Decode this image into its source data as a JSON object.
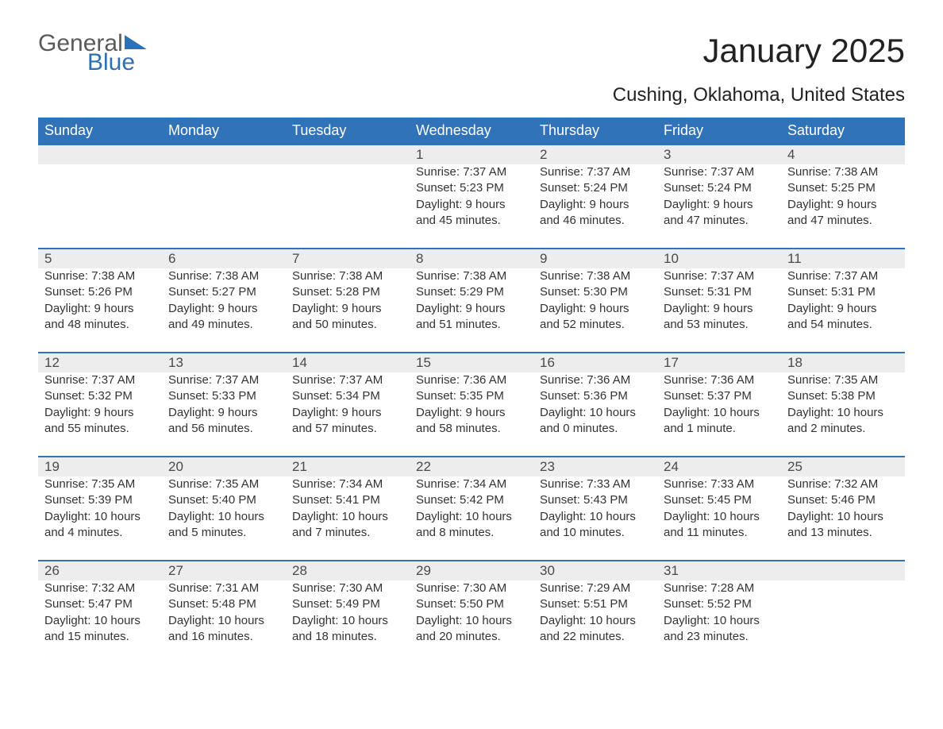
{
  "brand": {
    "general": "General",
    "blue": "Blue"
  },
  "title": "January 2025",
  "location": "Cushing, Oklahoma, United States",
  "colors": {
    "header_bg": "#3173b8",
    "header_text": "#ffffff",
    "daynum_bg": "#ededed",
    "text": "#333333",
    "brand_gray": "#5a5a5a",
    "brand_blue": "#2f6fb3"
  },
  "weekdays": [
    "Sunday",
    "Monday",
    "Tuesday",
    "Wednesday",
    "Thursday",
    "Friday",
    "Saturday"
  ],
  "weeks": [
    [
      null,
      null,
      null,
      {
        "n": "1",
        "sunrise": "Sunrise: 7:37 AM",
        "sunset": "Sunset: 5:23 PM",
        "d1": "Daylight: 9 hours",
        "d2": "and 45 minutes."
      },
      {
        "n": "2",
        "sunrise": "Sunrise: 7:37 AM",
        "sunset": "Sunset: 5:24 PM",
        "d1": "Daylight: 9 hours",
        "d2": "and 46 minutes."
      },
      {
        "n": "3",
        "sunrise": "Sunrise: 7:37 AM",
        "sunset": "Sunset: 5:24 PM",
        "d1": "Daylight: 9 hours",
        "d2": "and 47 minutes."
      },
      {
        "n": "4",
        "sunrise": "Sunrise: 7:38 AM",
        "sunset": "Sunset: 5:25 PM",
        "d1": "Daylight: 9 hours",
        "d2": "and 47 minutes."
      }
    ],
    [
      {
        "n": "5",
        "sunrise": "Sunrise: 7:38 AM",
        "sunset": "Sunset: 5:26 PM",
        "d1": "Daylight: 9 hours",
        "d2": "and 48 minutes."
      },
      {
        "n": "6",
        "sunrise": "Sunrise: 7:38 AM",
        "sunset": "Sunset: 5:27 PM",
        "d1": "Daylight: 9 hours",
        "d2": "and 49 minutes."
      },
      {
        "n": "7",
        "sunrise": "Sunrise: 7:38 AM",
        "sunset": "Sunset: 5:28 PM",
        "d1": "Daylight: 9 hours",
        "d2": "and 50 minutes."
      },
      {
        "n": "8",
        "sunrise": "Sunrise: 7:38 AM",
        "sunset": "Sunset: 5:29 PM",
        "d1": "Daylight: 9 hours",
        "d2": "and 51 minutes."
      },
      {
        "n": "9",
        "sunrise": "Sunrise: 7:38 AM",
        "sunset": "Sunset: 5:30 PM",
        "d1": "Daylight: 9 hours",
        "d2": "and 52 minutes."
      },
      {
        "n": "10",
        "sunrise": "Sunrise: 7:37 AM",
        "sunset": "Sunset: 5:31 PM",
        "d1": "Daylight: 9 hours",
        "d2": "and 53 minutes."
      },
      {
        "n": "11",
        "sunrise": "Sunrise: 7:37 AM",
        "sunset": "Sunset: 5:31 PM",
        "d1": "Daylight: 9 hours",
        "d2": "and 54 minutes."
      }
    ],
    [
      {
        "n": "12",
        "sunrise": "Sunrise: 7:37 AM",
        "sunset": "Sunset: 5:32 PM",
        "d1": "Daylight: 9 hours",
        "d2": "and 55 minutes."
      },
      {
        "n": "13",
        "sunrise": "Sunrise: 7:37 AM",
        "sunset": "Sunset: 5:33 PM",
        "d1": "Daylight: 9 hours",
        "d2": "and 56 minutes."
      },
      {
        "n": "14",
        "sunrise": "Sunrise: 7:37 AM",
        "sunset": "Sunset: 5:34 PM",
        "d1": "Daylight: 9 hours",
        "d2": "and 57 minutes."
      },
      {
        "n": "15",
        "sunrise": "Sunrise: 7:36 AM",
        "sunset": "Sunset: 5:35 PM",
        "d1": "Daylight: 9 hours",
        "d2": "and 58 minutes."
      },
      {
        "n": "16",
        "sunrise": "Sunrise: 7:36 AM",
        "sunset": "Sunset: 5:36 PM",
        "d1": "Daylight: 10 hours",
        "d2": "and 0 minutes."
      },
      {
        "n": "17",
        "sunrise": "Sunrise: 7:36 AM",
        "sunset": "Sunset: 5:37 PM",
        "d1": "Daylight: 10 hours",
        "d2": "and 1 minute."
      },
      {
        "n": "18",
        "sunrise": "Sunrise: 7:35 AM",
        "sunset": "Sunset: 5:38 PM",
        "d1": "Daylight: 10 hours",
        "d2": "and 2 minutes."
      }
    ],
    [
      {
        "n": "19",
        "sunrise": "Sunrise: 7:35 AM",
        "sunset": "Sunset: 5:39 PM",
        "d1": "Daylight: 10 hours",
        "d2": "and 4 minutes."
      },
      {
        "n": "20",
        "sunrise": "Sunrise: 7:35 AM",
        "sunset": "Sunset: 5:40 PM",
        "d1": "Daylight: 10 hours",
        "d2": "and 5 minutes."
      },
      {
        "n": "21",
        "sunrise": "Sunrise: 7:34 AM",
        "sunset": "Sunset: 5:41 PM",
        "d1": "Daylight: 10 hours",
        "d2": "and 7 minutes."
      },
      {
        "n": "22",
        "sunrise": "Sunrise: 7:34 AM",
        "sunset": "Sunset: 5:42 PM",
        "d1": "Daylight: 10 hours",
        "d2": "and 8 minutes."
      },
      {
        "n": "23",
        "sunrise": "Sunrise: 7:33 AM",
        "sunset": "Sunset: 5:43 PM",
        "d1": "Daylight: 10 hours",
        "d2": "and 10 minutes."
      },
      {
        "n": "24",
        "sunrise": "Sunrise: 7:33 AM",
        "sunset": "Sunset: 5:45 PM",
        "d1": "Daylight: 10 hours",
        "d2": "and 11 minutes."
      },
      {
        "n": "25",
        "sunrise": "Sunrise: 7:32 AM",
        "sunset": "Sunset: 5:46 PM",
        "d1": "Daylight: 10 hours",
        "d2": "and 13 minutes."
      }
    ],
    [
      {
        "n": "26",
        "sunrise": "Sunrise: 7:32 AM",
        "sunset": "Sunset: 5:47 PM",
        "d1": "Daylight: 10 hours",
        "d2": "and 15 minutes."
      },
      {
        "n": "27",
        "sunrise": "Sunrise: 7:31 AM",
        "sunset": "Sunset: 5:48 PM",
        "d1": "Daylight: 10 hours",
        "d2": "and 16 minutes."
      },
      {
        "n": "28",
        "sunrise": "Sunrise: 7:30 AM",
        "sunset": "Sunset: 5:49 PM",
        "d1": "Daylight: 10 hours",
        "d2": "and 18 minutes."
      },
      {
        "n": "29",
        "sunrise": "Sunrise: 7:30 AM",
        "sunset": "Sunset: 5:50 PM",
        "d1": "Daylight: 10 hours",
        "d2": "and 20 minutes."
      },
      {
        "n": "30",
        "sunrise": "Sunrise: 7:29 AM",
        "sunset": "Sunset: 5:51 PM",
        "d1": "Daylight: 10 hours",
        "d2": "and 22 minutes."
      },
      {
        "n": "31",
        "sunrise": "Sunrise: 7:28 AM",
        "sunset": "Sunset: 5:52 PM",
        "d1": "Daylight: 10 hours",
        "d2": "and 23 minutes."
      },
      null
    ]
  ]
}
